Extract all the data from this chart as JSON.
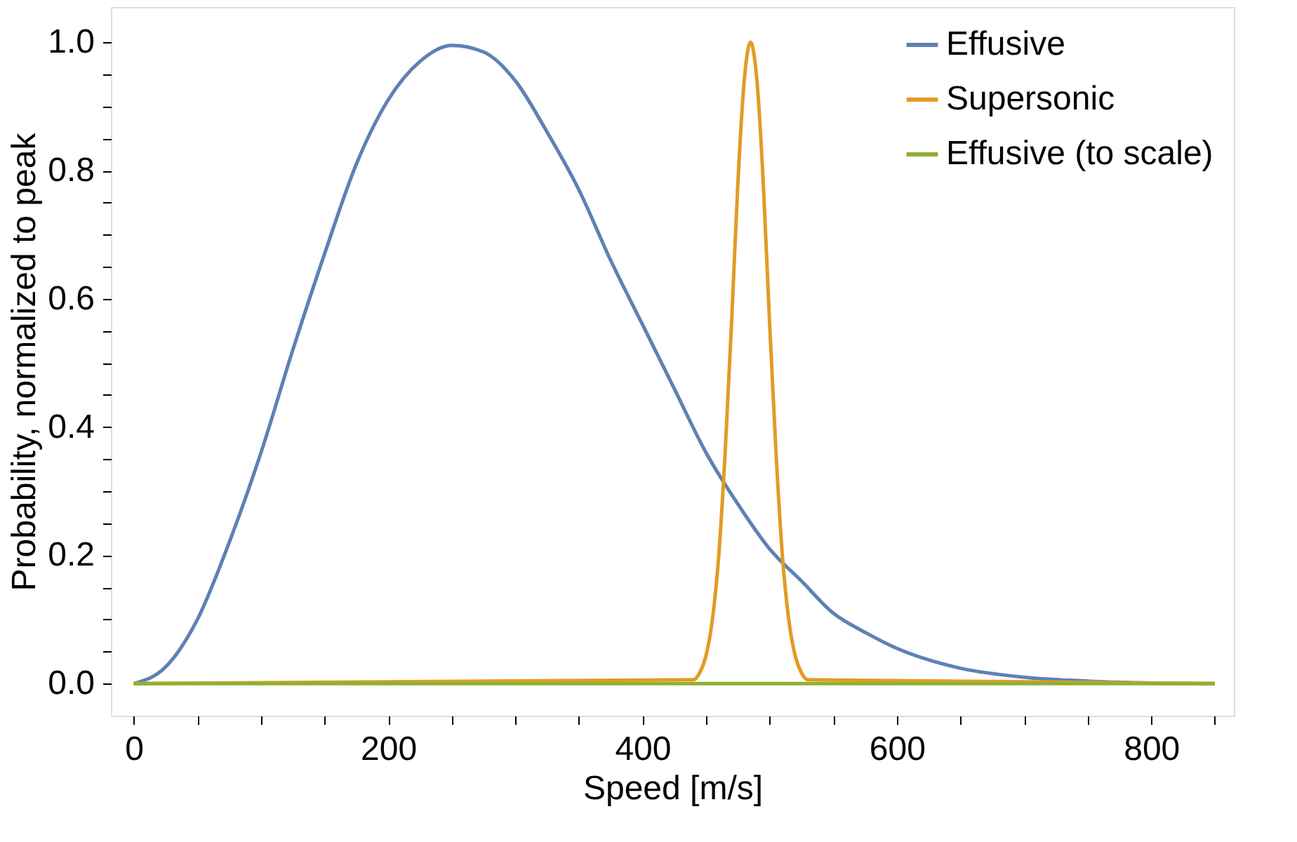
{
  "chart_data": {
    "type": "line",
    "xlabel": "Speed [m/s]",
    "ylabel": "Probability, normalized to peak",
    "xlim": [
      -18,
      865
    ],
    "ylim": [
      -0.05,
      1.055
    ],
    "xticks": [
      0,
      {
        "value": 50,
        "label": null
      },
      {
        "value": 100,
        "label": null
      },
      {
        "value": 150,
        "label": null
      },
      200,
      {
        "value": 250,
        "label": null
      },
      {
        "value": 300,
        "label": null
      },
      {
        "value": 350,
        "label": null
      },
      400,
      {
        "value": 450,
        "label": null
      },
      {
        "value": 500,
        "label": null
      },
      {
        "value": 550,
        "label": null
      },
      600,
      {
        "value": 650,
        "label": null
      },
      {
        "value": 700,
        "label": null
      },
      {
        "value": 750,
        "label": null
      },
      800,
      {
        "value": 850,
        "label": null
      }
    ],
    "yticks": [
      {
        "value": 0,
        "label": "0.0"
      },
      {
        "value": 0.05,
        "label": null
      },
      {
        "value": 0.1,
        "label": null
      },
      {
        "value": 0.15,
        "label": null
      },
      0.2,
      {
        "value": 0.25,
        "label": null
      },
      {
        "value": 0.3,
        "label": null
      },
      {
        "value": 0.35,
        "label": null
      },
      0.4,
      {
        "value": 0.45,
        "label": null
      },
      {
        "value": 0.5,
        "label": null
      },
      {
        "value": 0.55,
        "label": null
      },
      0.6,
      {
        "value": 0.65,
        "label": null
      },
      {
        "value": 0.7,
        "label": null
      },
      {
        "value": 0.75,
        "label": null
      },
      0.8,
      {
        "value": 0.85,
        "label": null
      },
      {
        "value": 0.9,
        "label": null
      },
      {
        "value": 0.95,
        "label": null
      },
      {
        "value": 1,
        "label": "1.0"
      }
    ],
    "grid": false,
    "legend": "top right",
    "marker": "none",
    "line_style": "solid",
    "series": [
      {
        "name": "Effusive",
        "color": "#5e81b5",
        "x": [
          0,
          25,
          50,
          75,
          100,
          125,
          150,
          175,
          200,
          225,
          250,
          275,
          300,
          325,
          350,
          375,
          400,
          425,
          450,
          475,
          500,
          525,
          550,
          575,
          600,
          625,
          650,
          700,
          750,
          800,
          850
        ],
        "values": [
          0,
          0.026,
          0.1,
          0.22,
          0.36,
          0.52,
          0.67,
          0.81,
          0.91,
          0.97,
          0.995,
          0.985,
          0.94,
          0.86,
          0.77,
          0.66,
          0.56,
          0.46,
          0.36,
          0.28,
          0.21,
          0.16,
          0.11,
          0.08,
          0.055,
          0.037,
          0.024,
          0.01,
          0.004,
          0.001,
          0
        ]
      },
      {
        "name": "Supersonic",
        "color": "#e19c24",
        "x": [
          0,
          440,
          445,
          450,
          455,
          460,
          465,
          470,
          475,
          480,
          485,
          490,
          495,
          500,
          505,
          510,
          515,
          520,
          525,
          530,
          850
        ],
        "values": [
          0,
          0.006,
          0.017,
          0.044,
          0.1,
          0.2,
          0.36,
          0.56,
          0.78,
          0.94,
          1.0,
          0.94,
          0.78,
          0.56,
          0.36,
          0.2,
          0.1,
          0.044,
          0.017,
          0.006,
          0
        ]
      },
      {
        "name": "Effusive (to scale)",
        "color": "#8fb032",
        "x": [
          0,
          250,
          500,
          850
        ],
        "values": [
          0,
          0,
          0,
          0
        ]
      }
    ]
  }
}
